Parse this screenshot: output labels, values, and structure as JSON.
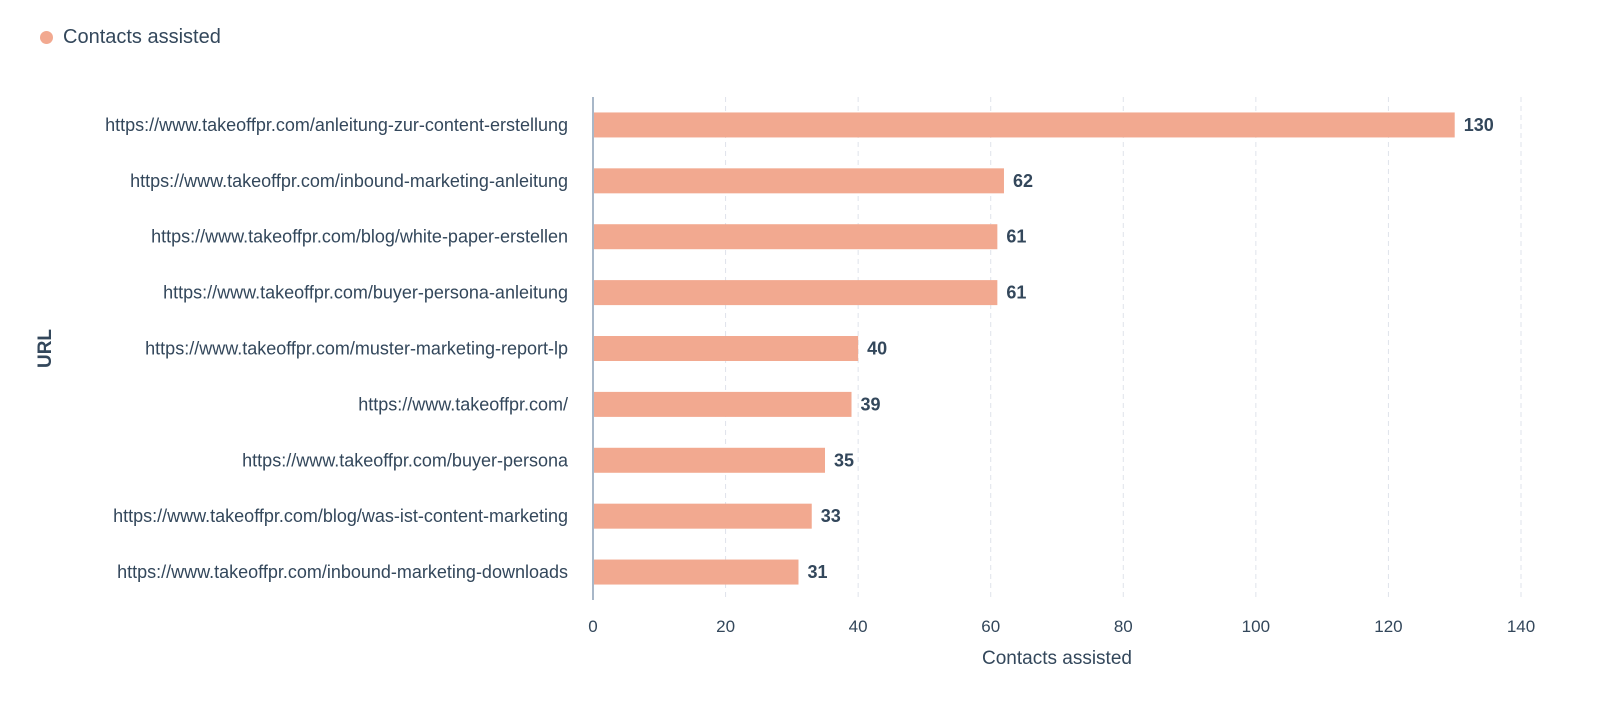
{
  "legend": {
    "label": "Contacts assisted",
    "color": "#f2a990"
  },
  "chart_data": {
    "type": "bar",
    "orientation": "horizontal",
    "categories": [
      "https://www.takeoffpr.com/anleitung-zur-content-erstellung",
      "https://www.takeoffpr.com/inbound-marketing-anleitung",
      "https://www.takeoffpr.com/blog/white-paper-erstellen",
      "https://www.takeoffpr.com/buyer-persona-anleitung",
      "https://www.takeoffpr.com/muster-marketing-report-lp",
      "https://www.takeoffpr.com/",
      "https://www.takeoffpr.com/buyer-persona",
      "https://www.takeoffpr.com/blog/was-ist-content-marketing",
      "https://www.takeoffpr.com/inbound-marketing-downloads"
    ],
    "series": [
      {
        "name": "Contacts assisted",
        "values": [
          130,
          62,
          61,
          61,
          40,
          39,
          35,
          33,
          31
        ],
        "color": "#f2a990"
      }
    ],
    "xlabel": "Contacts assisted",
    "ylabel": "URL",
    "xlim": [
      0,
      140
    ],
    "xticks": [
      0,
      20,
      40,
      60,
      80,
      100,
      120,
      140
    ],
    "grid": "vertical-dashed",
    "legend_position": "top-left",
    "data_labels": true
  }
}
